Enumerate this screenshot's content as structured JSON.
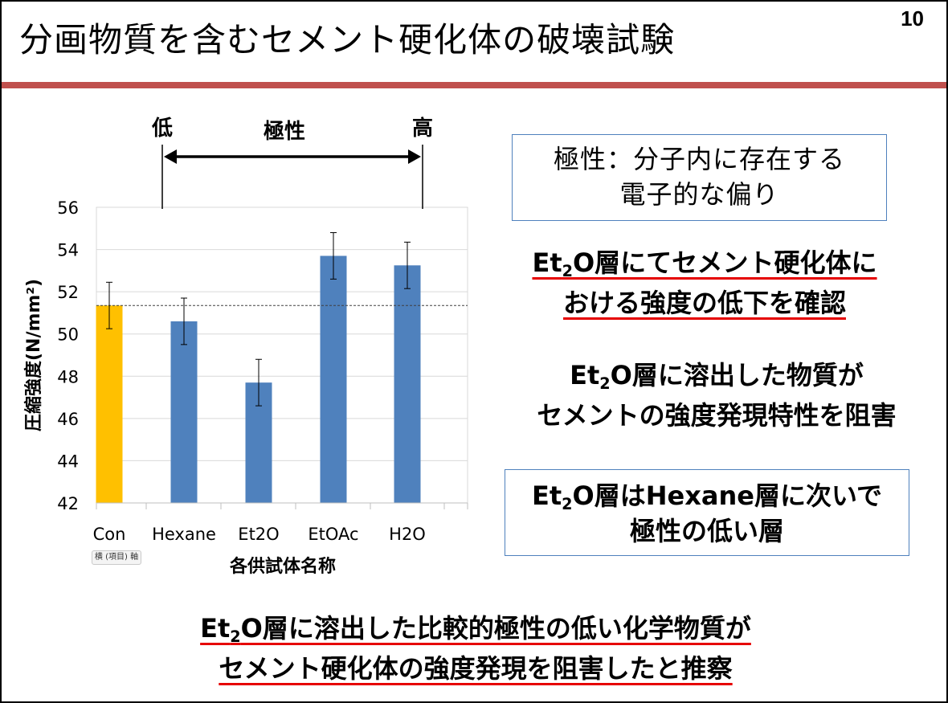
{
  "slide": {
    "title": "分画物質を含むセメント硬化体の破壊試験",
    "page_number": "10",
    "accent_color": "#c0504d"
  },
  "polarity": {
    "low_label": "低",
    "axis_label": "極性",
    "high_label": "高"
  },
  "boxes": {
    "definition": {
      "line1": "極性：分子内に存在する",
      "line2": "電子的な偏り"
    },
    "finding1": {
      "line1_a": "Et",
      "line1_sub": "2",
      "line1_b": "O層にてセメント硬化体に",
      "line2": "おける強度の低下を確認"
    },
    "finding2": {
      "line1_a": "Et",
      "line1_sub": "2",
      "line1_b": "O層に溶出した物質が",
      "line2": "セメントの強度発現特性を阻害"
    },
    "finding3": {
      "line1_a": "Et",
      "line1_sub": "2",
      "line1_b": "O層はHexane層に次いで",
      "line2": "極性の低い層"
    },
    "conclusion": {
      "line1_a": "Et",
      "line1_sub": "2",
      "line1_b": "O層に溶出した比較的極性の低い化学物質が",
      "line2": "セメント硬化体の強度発現を阻害したと推察"
    }
  },
  "tooltip": "横 (項目) 軸",
  "chart_data": {
    "type": "bar",
    "categories": [
      "Con",
      "Hexane",
      "Et2O",
      "EtOAc",
      "H2O"
    ],
    "values": [
      51.35,
      50.6,
      47.7,
      53.7,
      53.25
    ],
    "errors": [
      1.1,
      1.1,
      1.1,
      1.1,
      1.1
    ],
    "reference_line": 51.35,
    "xlabel": "各供試体名称",
    "ylabel": "圧縮強度(N/mm²)",
    "ylim": [
      42,
      56
    ],
    "yticks": [
      42,
      44,
      46,
      48,
      50,
      52,
      54,
      56
    ],
    "colors": {
      "control": "#ffc000",
      "sample": "#4f81bd",
      "grid": "#d9d9d9",
      "reference": "#404040"
    }
  }
}
